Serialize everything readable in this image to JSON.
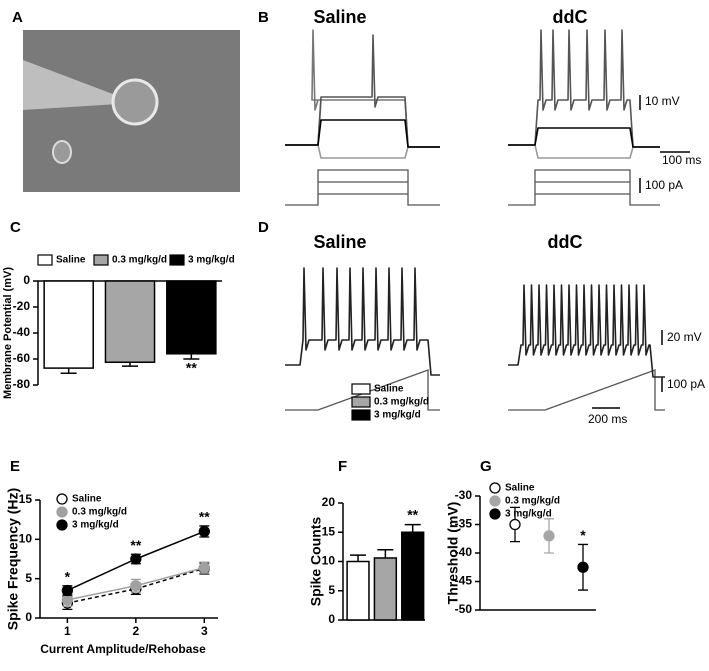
{
  "panels": {
    "labels": [
      "A",
      "B",
      "C",
      "D",
      "E",
      "F",
      "G"
    ],
    "B": {
      "titles": [
        "Saline",
        "ddC"
      ],
      "scale_bars": [
        "10 mV",
        "100 ms",
        "100 pA"
      ]
    },
    "D": {
      "titles": [
        "Saline",
        "ddC"
      ],
      "scale_bars": [
        "20 mV",
        "100 pA",
        "200 ms"
      ]
    }
  },
  "chart_data": [
    {
      "type": "bar",
      "ylabel": "Membrane Potential (mV)",
      "ylim": [
        -80,
        0
      ],
      "yticks": [
        0,
        -20,
        -40,
        -60,
        -80
      ],
      "legend": "top",
      "series": [
        {
          "name": "Saline",
          "color": "#ffffff",
          "values": [
            -67
          ],
          "errors": [
            4
          ]
        },
        {
          "name": "0.3 mg/kg/d",
          "color": "#a6a6a6",
          "values": [
            -62.5
          ],
          "errors": [
            3
          ]
        },
        {
          "name": "3 mg/kg/d",
          "color": "#000000",
          "values": [
            -56
          ],
          "errors": [
            4
          ],
          "annotations": [
            "**"
          ]
        }
      ]
    },
    {
      "type": "line",
      "xlabel": "Current Amplitude/Rehobase",
      "ylabel": "Spike Frequency (Hz)",
      "x": [
        1,
        2,
        3
      ],
      "xlim": [
        0.6,
        3.2
      ],
      "xticks": [
        1,
        2,
        3
      ],
      "ylim": [
        0,
        15
      ],
      "yticks": [
        0,
        5,
        10,
        15
      ],
      "legend": "upper left",
      "series": [
        {
          "name": "Saline",
          "color": "#000000",
          "marker": "open",
          "line_style": "dashed",
          "values": [
            1.9,
            3.7,
            6.3
          ],
          "errors": [
            0.8,
            0.7,
            0.7
          ]
        },
        {
          "name": "0.3 mg/kg/d",
          "color": "#a0a0a0",
          "marker": "filled",
          "line_style": "solid",
          "values": [
            2.3,
            4.1,
            6.4
          ],
          "errors": [
            0.8,
            0.8,
            0.7
          ]
        },
        {
          "name": "3 mg/kg/d",
          "color": "#000000",
          "marker": "filled",
          "line_style": "solid",
          "values": [
            3.5,
            7.5,
            11
          ],
          "errors": [
            0.6,
            0.6,
            0.7
          ],
          "annotations": [
            "*",
            "**",
            "**"
          ]
        }
      ]
    },
    {
      "type": "bar",
      "ylabel": "Spike Counts",
      "ylim": [
        0,
        20
      ],
      "yticks": [
        0,
        5,
        10,
        15,
        20
      ],
      "legend": "top",
      "series": [
        {
          "name": "Saline",
          "color": "#ffffff",
          "values": [
            10
          ],
          "errors": [
            1.1
          ]
        },
        {
          "name": "0.3 mg/kg/d",
          "color": "#a6a6a6",
          "values": [
            10.6
          ],
          "errors": [
            1.4
          ]
        },
        {
          "name": "3 mg/kg/d",
          "color": "#000000",
          "values": [
            15
          ],
          "errors": [
            1.3
          ],
          "annotations": [
            "**"
          ]
        }
      ]
    },
    {
      "type": "errorbar",
      "ylabel": "Threshold (mV)",
      "ylim": [
        -50,
        -30
      ],
      "yticks": [
        -30,
        -35,
        -40,
        -45,
        -50
      ],
      "legend": "upper left",
      "series": [
        {
          "name": "Saline",
          "color": "#000000",
          "marker": "open",
          "values": [
            -35
          ],
          "errors": [
            3
          ]
        },
        {
          "name": "0.3 mg/kg/d",
          "color": "#a6a6a6",
          "marker": "filled",
          "values": [
            -37
          ],
          "errors": [
            3
          ]
        },
        {
          "name": "3 mg/kg/d",
          "color": "#000000",
          "marker": "filled",
          "values": [
            -42.5
          ],
          "errors": [
            4
          ],
          "annotations": [
            "*"
          ]
        }
      ]
    }
  ]
}
